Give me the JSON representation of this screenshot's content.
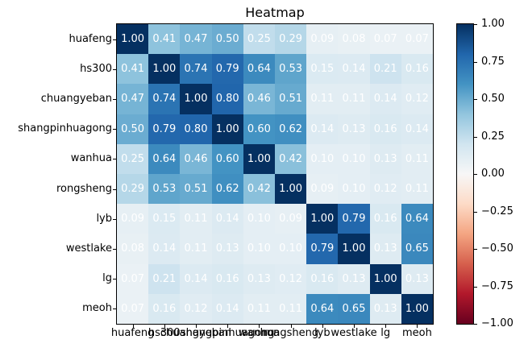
{
  "title": "Heatmap",
  "chart_data": {
    "type": "heatmap",
    "title": "Heatmap",
    "x_labels": [
      "huafeng",
      "hs300",
      "chuangyeban",
      "shangpinhuagong",
      "wanhua",
      "rongsheng",
      "lyb",
      "westlake",
      "lg",
      "meoh"
    ],
    "y_labels": [
      "huafeng",
      "hs300",
      "chuangyeban",
      "shangpinhuagong",
      "wanhua",
      "rongsheng",
      "lyb",
      "westlake",
      "lg",
      "meoh"
    ],
    "matrix": [
      [
        1.0,
        0.41,
        0.47,
        0.5,
        0.25,
        0.29,
        0.09,
        0.08,
        0.07,
        0.07
      ],
      [
        0.41,
        1.0,
        0.74,
        0.79,
        0.64,
        0.53,
        0.15,
        0.14,
        0.21,
        0.16
      ],
      [
        0.47,
        0.74,
        1.0,
        0.8,
        0.46,
        0.51,
        0.11,
        0.11,
        0.14,
        0.12
      ],
      [
        0.5,
        0.79,
        0.8,
        1.0,
        0.6,
        0.62,
        0.14,
        0.13,
        0.16,
        0.14
      ],
      [
        0.25,
        0.64,
        0.46,
        0.6,
        1.0,
        0.42,
        0.1,
        0.1,
        0.13,
        0.11
      ],
      [
        0.29,
        0.53,
        0.51,
        0.62,
        0.42,
        1.0,
        0.09,
        0.1,
        0.12,
        0.11
      ],
      [
        0.09,
        0.15,
        0.11,
        0.14,
        0.1,
        0.09,
        1.0,
        0.79,
        0.16,
        0.64
      ],
      [
        0.08,
        0.14,
        0.11,
        0.13,
        0.1,
        0.1,
        0.79,
        1.0,
        0.13,
        0.65
      ],
      [
        0.07,
        0.21,
        0.14,
        0.16,
        0.13,
        0.12,
        0.16,
        0.13,
        1.0,
        0.13
      ],
      [
        0.07,
        0.16,
        0.12,
        0.14,
        0.11,
        0.11,
        0.64,
        0.65,
        0.13,
        1.0
      ]
    ],
    "value_decimals": 2,
    "cell_text_color": "#ffffff",
    "colormap": "RdBu",
    "vmin": -1.0,
    "vmax": 1.0,
    "colormap_anchors": [
      {
        "value": -1.0,
        "color": "#67001f"
      },
      {
        "value": -0.8,
        "color": "#b2182b"
      },
      {
        "value": -0.6,
        "color": "#d6604d"
      },
      {
        "value": -0.4,
        "color": "#f4a582"
      },
      {
        "value": -0.2,
        "color": "#fddbc7"
      },
      {
        "value": 0.0,
        "color": "#f7f7f7"
      },
      {
        "value": 0.2,
        "color": "#d1e5f0"
      },
      {
        "value": 0.4,
        "color": "#92c5de"
      },
      {
        "value": 0.6,
        "color": "#4393c3"
      },
      {
        "value": 0.8,
        "color": "#2166ac"
      },
      {
        "value": 1.0,
        "color": "#053061"
      }
    ],
    "colorbar_tick_labels": [
      "1.00",
      "0.75",
      "0.50",
      "0.25",
      "0.00",
      "−0.25",
      "−0.50",
      "−0.75",
      "−1.00"
    ]
  }
}
